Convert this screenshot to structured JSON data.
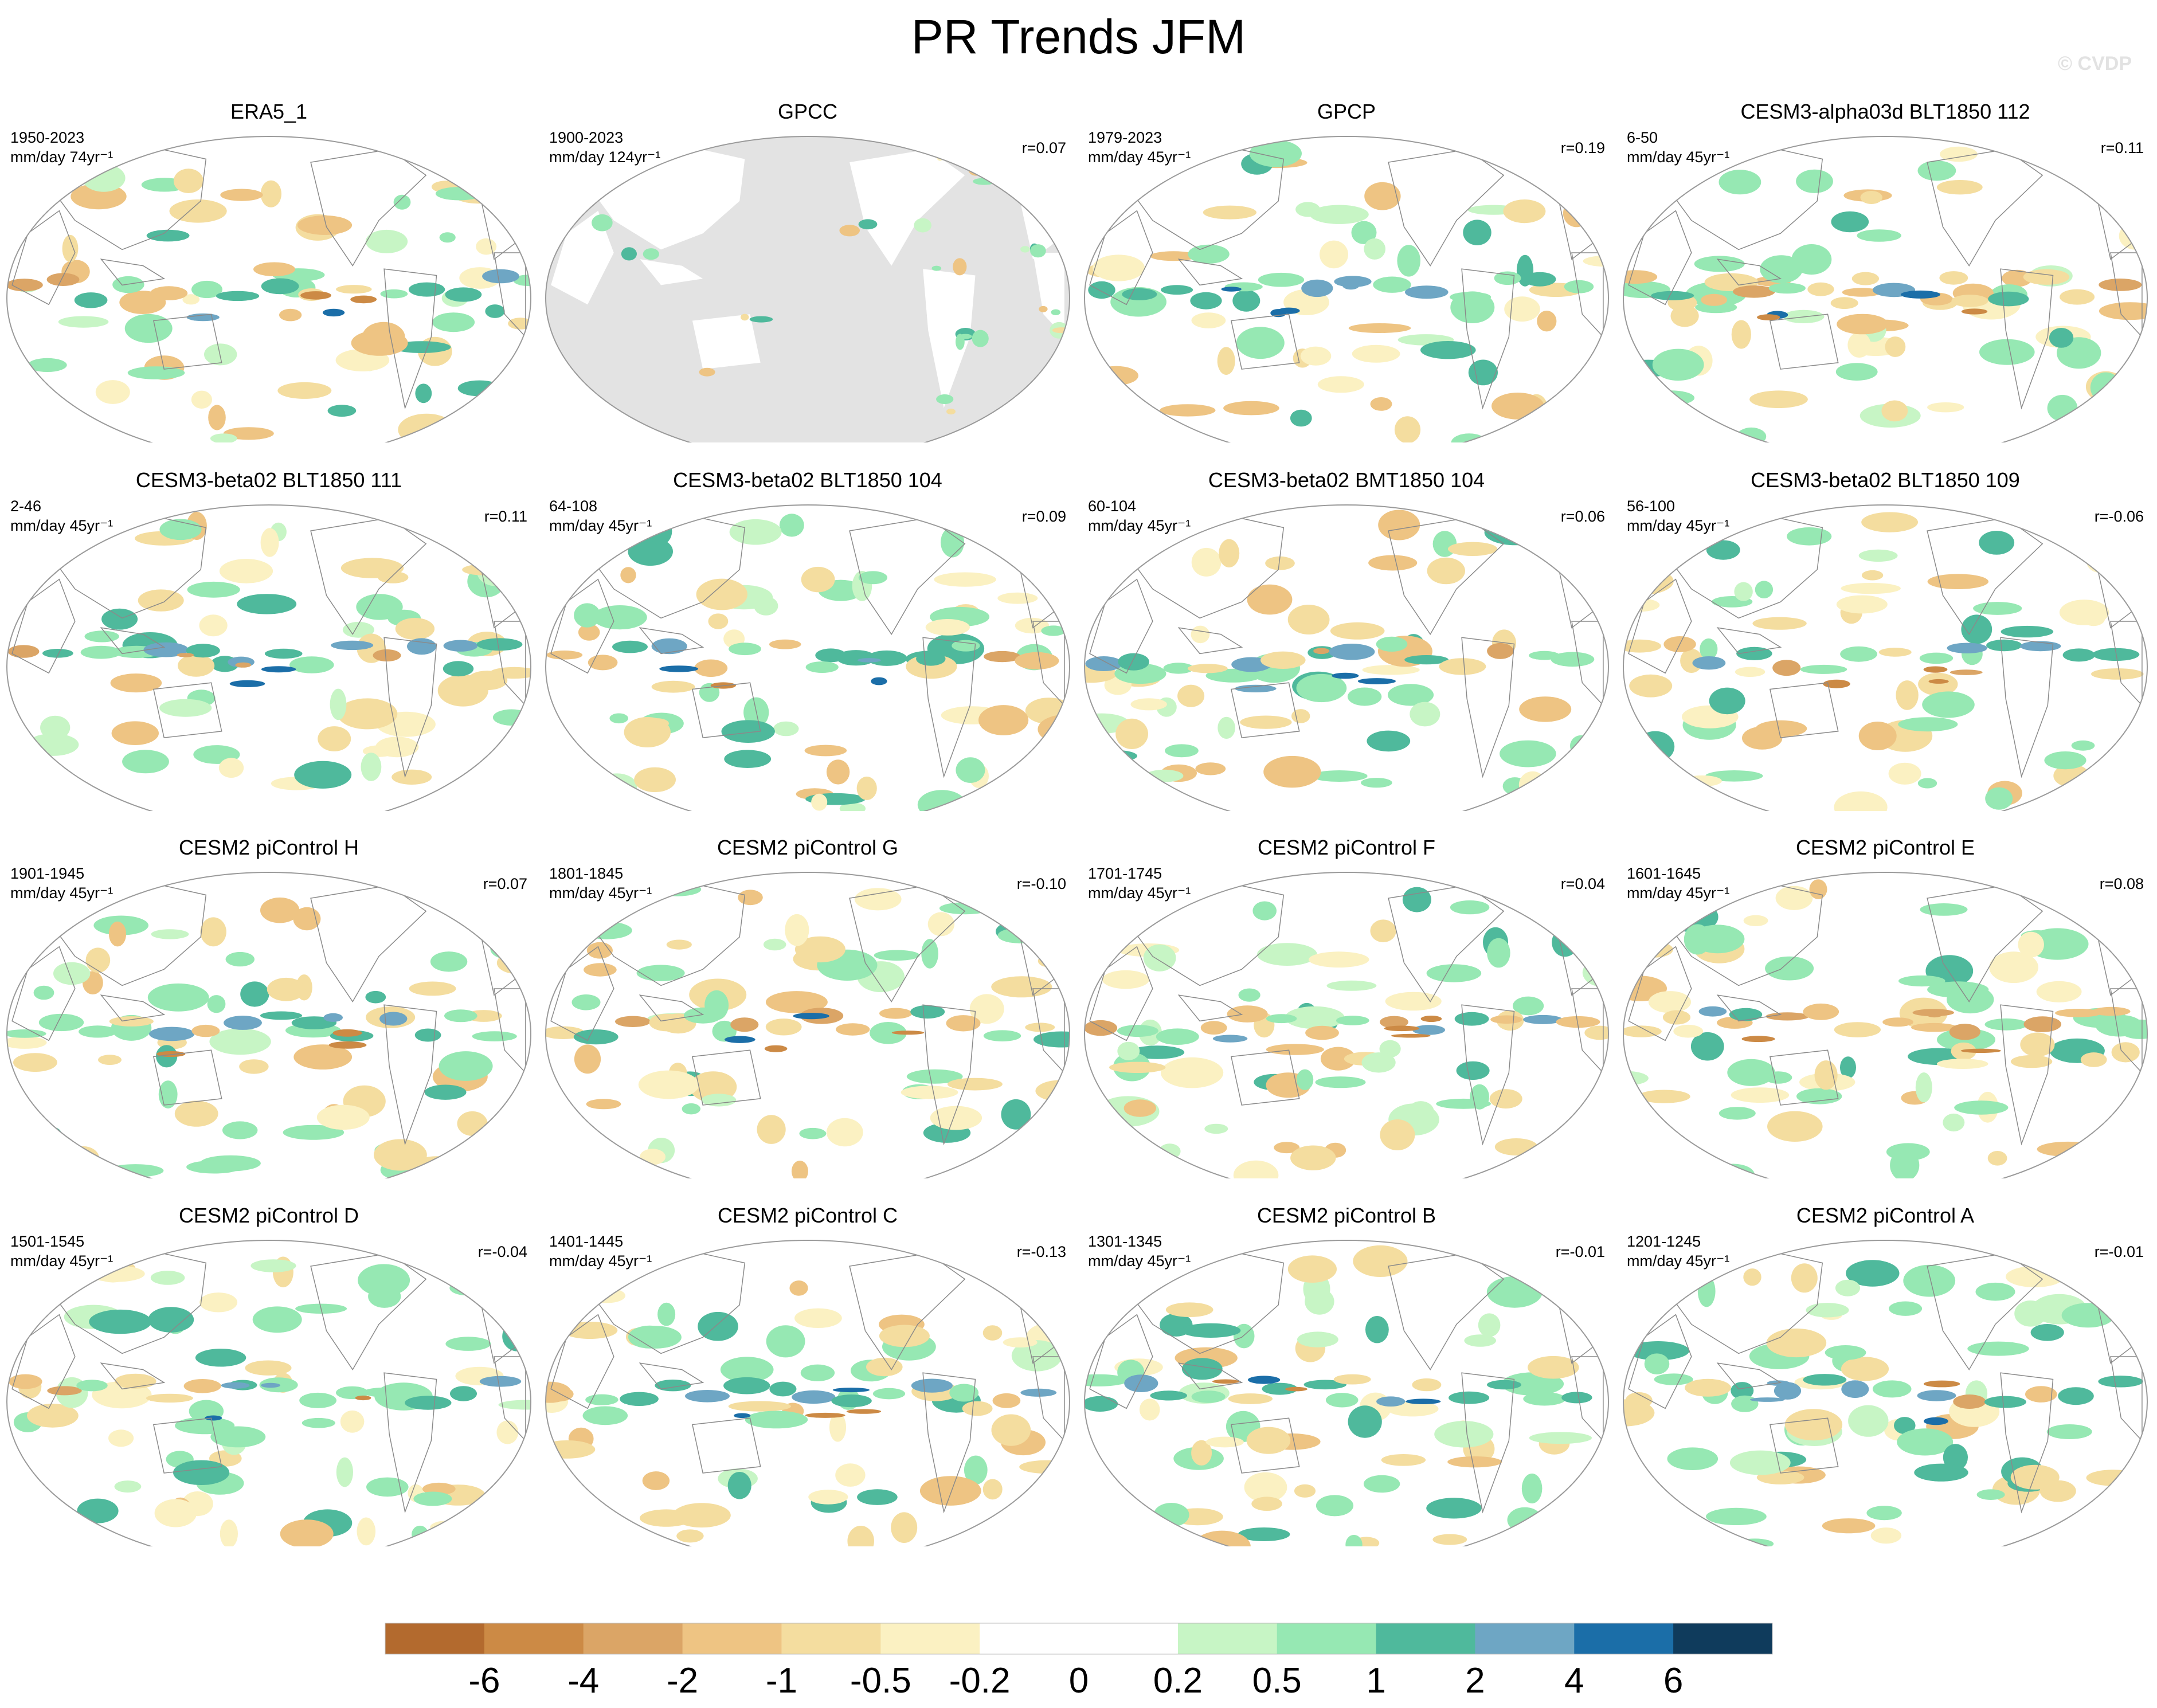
{
  "title": "PR Trends JFM",
  "watermark": "© CVDP",
  "chart_data": {
    "type": "heatmap",
    "title": "PR Trends JFM",
    "projection": "global map, Pacific-centered",
    "variable": "precipitation trend",
    "panels": [
      {
        "title": "ERA5_1",
        "years": "1950-2023",
        "units": "mm/day 74yr⁻¹",
        "r": "",
        "land_only": false,
        "pattern": 0
      },
      {
        "title": "GPCC",
        "years": "1900-2023",
        "units": "mm/day 124yr⁻¹",
        "r": "r=0.07",
        "land_only": true,
        "pattern": 1
      },
      {
        "title": "GPCP",
        "years": "1979-2023",
        "units": "mm/day 45yr⁻¹",
        "r": "r=0.19",
        "land_only": false,
        "pattern": 2
      },
      {
        "title": "CESM3-alpha03d BLT1850 112",
        "years": "6-50",
        "units": "mm/day 45yr⁻¹",
        "r": "r=0.11",
        "land_only": false,
        "pattern": 3
      },
      {
        "title": "CESM3-beta02 BLT1850 111",
        "years": "2-46",
        "units": "mm/day 45yr⁻¹",
        "r": "r=0.11",
        "land_only": false,
        "pattern": 4
      },
      {
        "title": "CESM3-beta02 BLT1850 104",
        "years": "64-108",
        "units": "mm/day 45yr⁻¹",
        "r": "r=0.09",
        "land_only": false,
        "pattern": 5
      },
      {
        "title": "CESM3-beta02 BMT1850 104",
        "years": "60-104",
        "units": "mm/day 45yr⁻¹",
        "r": "r=0.06",
        "land_only": false,
        "pattern": 6
      },
      {
        "title": "CESM3-beta02 BLT1850 109",
        "years": "56-100",
        "units": "mm/day 45yr⁻¹",
        "r": "r=-0.06",
        "land_only": false,
        "pattern": 7
      },
      {
        "title": "CESM2 piControl H",
        "years": "1901-1945",
        "units": "mm/day 45yr⁻¹",
        "r": "r=0.07",
        "land_only": false,
        "pattern": 8
      },
      {
        "title": "CESM2 piControl G",
        "years": "1801-1845",
        "units": "mm/day 45yr⁻¹",
        "r": "r=-0.10",
        "land_only": false,
        "pattern": 9
      },
      {
        "title": "CESM2 piControl F",
        "years": "1701-1745",
        "units": "mm/day 45yr⁻¹",
        "r": "r=0.04",
        "land_only": false,
        "pattern": 10
      },
      {
        "title": "CESM2 piControl E",
        "years": "1601-1645",
        "units": "mm/day 45yr⁻¹",
        "r": "r=0.08",
        "land_only": false,
        "pattern": 11
      },
      {
        "title": "CESM2 piControl D",
        "years": "1501-1545",
        "units": "mm/day 45yr⁻¹",
        "r": "r=-0.04",
        "land_only": false,
        "pattern": 12
      },
      {
        "title": "CESM2 piControl C",
        "years": "1401-1445",
        "units": "mm/day 45yr⁻¹",
        "r": "r=-0.13",
        "land_only": false,
        "pattern": 13
      },
      {
        "title": "CESM2 piControl B",
        "years": "1301-1345",
        "units": "mm/day 45yr⁻¹",
        "r": "r=-0.01",
        "land_only": false,
        "pattern": 14
      },
      {
        "title": "CESM2 piControl A",
        "years": "1201-1245",
        "units": "mm/day 45yr⁻¹",
        "r": "r=-0.01",
        "land_only": false,
        "pattern": 15
      }
    ],
    "colorbar": {
      "levels": [
        "-6",
        "-4",
        "-2",
        "-1",
        "-0.5",
        "-0.2",
        "0",
        "0.2",
        "0.5",
        "1",
        "2",
        "4",
        "6"
      ],
      "colors": [
        "#b36a2e",
        "#cc8a45",
        "#dba566",
        "#eec483",
        "#f4dd9f",
        "#fbf1c2",
        "#ffffff",
        "#ffffff",
        "#c7f5c5",
        "#96e8b3",
        "#4fb99c",
        "#6ea6c4",
        "#1b6ea8",
        "#0f3b5c"
      ]
    }
  }
}
